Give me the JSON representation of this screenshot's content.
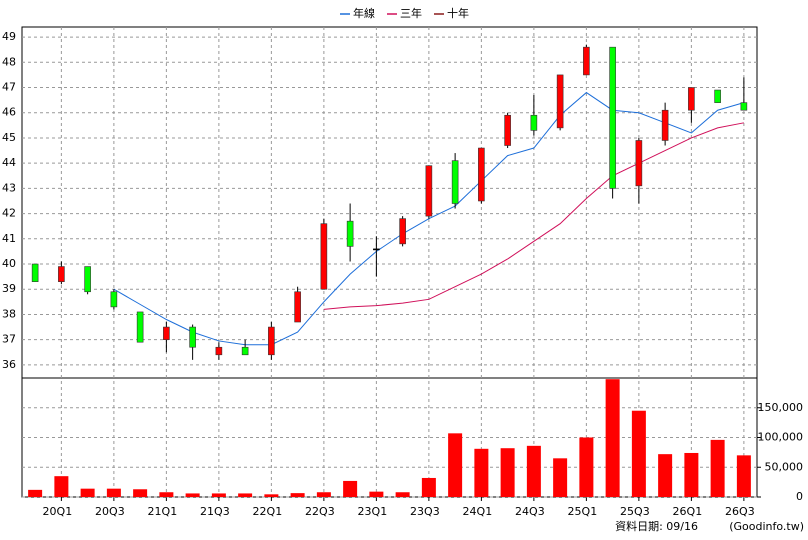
{
  "chart_data": [
    {
      "type": "candlestick",
      "categories": [
        null,
        "20Q1",
        null,
        "20Q3",
        null,
        "21Q1",
        null,
        "21Q3",
        null,
        "22Q1",
        null,
        "22Q3",
        null,
        "23Q1",
        null,
        "23Q3",
        null,
        "24Q1",
        null,
        "24Q3",
        null,
        "25Q1",
        null,
        "25Q3",
        null,
        "26Q1",
        null,
        "26Q3"
      ],
      "open": [
        40.0,
        39.3,
        39.9,
        38.9,
        38.1,
        37.0,
        37.5,
        36.4,
        36.7,
        36.4,
        37.7,
        39.0,
        41.7,
        40.6,
        40.8,
        41.9,
        44.1,
        42.5,
        44.7,
        45.9,
        45.4,
        47.5,
        48.6,
        43.1,
        44.9,
        46.1,
        46.9,
        46.4
      ],
      "high": [
        40.0,
        40.1,
        39.9,
        39.0,
        38.1,
        37.7,
        37.6,
        36.9,
        37.0,
        37.7,
        39.1,
        41.8,
        42.4,
        41.1,
        41.9,
        43.9,
        44.4,
        44.6,
        46.0,
        46.7,
        47.5,
        48.7,
        48.6,
        45.0,
        46.4,
        47.0,
        46.9,
        47.4
      ],
      "low": [
        39.3,
        39.2,
        38.8,
        38.2,
        36.9,
        36.5,
        36.2,
        36.2,
        36.4,
        36.2,
        37.7,
        39.0,
        40.1,
        39.5,
        40.7,
        41.8,
        42.2,
        42.4,
        44.6,
        45.1,
        45.3,
        47.5,
        42.6,
        42.4,
        44.7,
        45.6,
        46.4,
        46.1
      ],
      "close": [
        39.3,
        39.9,
        38.9,
        38.3,
        36.9,
        37.5,
        36.7,
        36.7,
        36.4,
        37.5,
        38.9,
        41.6,
        40.7,
        40.6,
        41.8,
        43.9,
        42.4,
        44.6,
        45.9,
        45.3,
        47.5,
        48.6,
        43.0,
        44.9,
        46.1,
        47.0,
        46.4,
        46.1
      ],
      "up_color": "#ff0000",
      "down_color": "#00ff00",
      "doji_color": "#000000",
      "series": [
        {
          "name": "年線",
          "color": "#1e6fd9",
          "values": [
            null,
            null,
            null,
            39.0,
            38.4,
            37.8,
            37.3,
            36.95,
            36.8,
            36.8,
            37.3,
            38.5,
            39.6,
            40.5,
            41.2,
            41.8,
            42.3,
            43.3,
            44.3,
            44.6,
            45.9,
            46.8,
            46.1,
            46.0,
            45.6,
            45.2,
            46.1,
            46.4
          ]
        },
        {
          "name": "三年",
          "color": "#d0105a",
          "values": [
            null,
            null,
            null,
            null,
            null,
            null,
            null,
            null,
            null,
            null,
            null,
            38.2,
            38.3,
            38.35,
            38.45,
            38.6,
            39.1,
            39.6,
            40.2,
            40.9,
            41.6,
            42.6,
            43.5,
            44.0,
            44.5,
            45.0,
            45.4,
            45.6
          ]
        },
        {
          "name": "十年",
          "color": "#8b1a1a",
          "values": [
            null,
            null,
            null,
            null,
            null,
            null,
            null,
            null,
            null,
            null,
            null,
            null,
            null,
            null,
            null,
            null,
            null,
            null,
            null,
            null,
            null,
            null,
            null,
            null,
            null,
            null,
            null,
            null
          ]
        }
      ],
      "ylim": [
        35.48,
        49.4
      ],
      "yticks": [
        36,
        37,
        38,
        39,
        40,
        41,
        42,
        43,
        44,
        45,
        46,
        47,
        48,
        49
      ],
      "grid": true
    },
    {
      "type": "bar",
      "values": [
        12000,
        35000,
        14000,
        14000,
        13000,
        8000,
        6000,
        6000,
        6000,
        4500,
        6500,
        8000,
        27000,
        9000,
        8000,
        32000,
        107000,
        81000,
        82000,
        86000,
        65000,
        100000,
        198000,
        145000,
        72000,
        74000,
        96000,
        70000
      ],
      "color": "#ff0000",
      "ylim": [
        0,
        200000
      ],
      "yticks": [
        0,
        {
          "value": 50000,
          "label": "50,000"
        },
        {
          "value": 100000,
          "label": "100,000"
        },
        {
          "value": 150000,
          "label": "150,000"
        }
      ],
      "grid": true
    }
  ],
  "footer": {
    "date": "資料日期: 09/16",
    "source": "(Goodinfo.tw)"
  }
}
